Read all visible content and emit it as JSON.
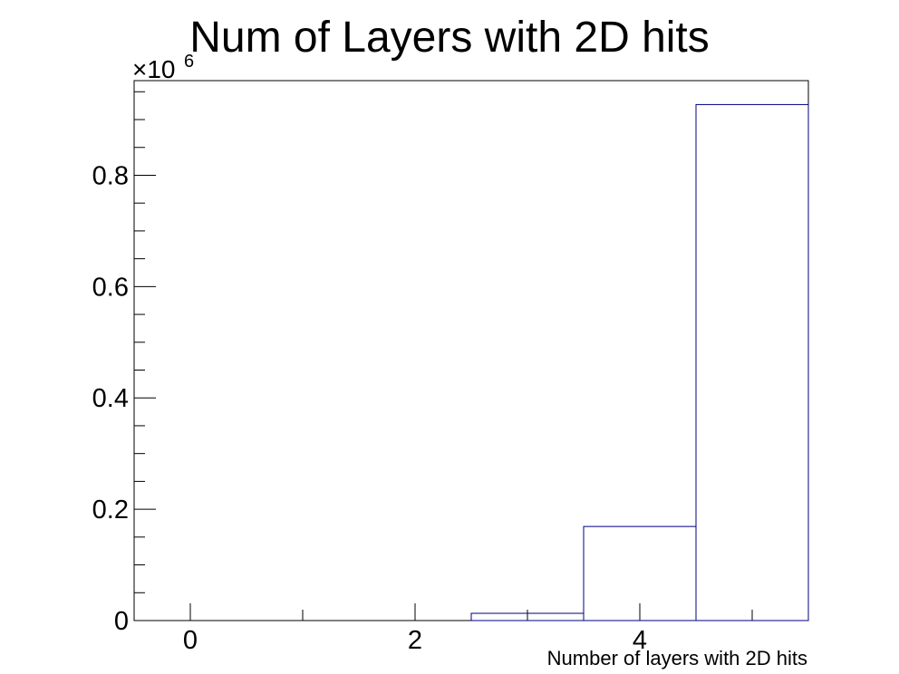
{
  "chart_data": {
    "type": "bar",
    "title": "Num of Layers with 2D hits",
    "xlabel": "Number of layers with 2D hits",
    "ylabel": "",
    "y_multiplier_label": "×10",
    "y_multiplier_exponent": "6",
    "xlim": [
      -0.5,
      5.5
    ],
    "ylim": [
      0,
      0.97
    ],
    "bin_edges": [
      -0.5,
      0.5,
      1.5,
      2.5,
      3.5,
      4.5,
      5.5
    ],
    "values": [
      0,
      0,
      0,
      0.013,
      0.169,
      0.927
    ],
    "x_ticks": [
      0,
      2,
      4
    ],
    "x_tick_labels": [
      "0",
      "2",
      "4"
    ],
    "y_ticks": [
      0,
      0.2,
      0.4,
      0.6,
      0.8
    ],
    "y_tick_labels": [
      "0",
      "0.2",
      "0.4",
      "0.6",
      "0.8"
    ],
    "line_color": "#000080",
    "frame_color": "#000000",
    "grid": false,
    "legend": "none"
  }
}
